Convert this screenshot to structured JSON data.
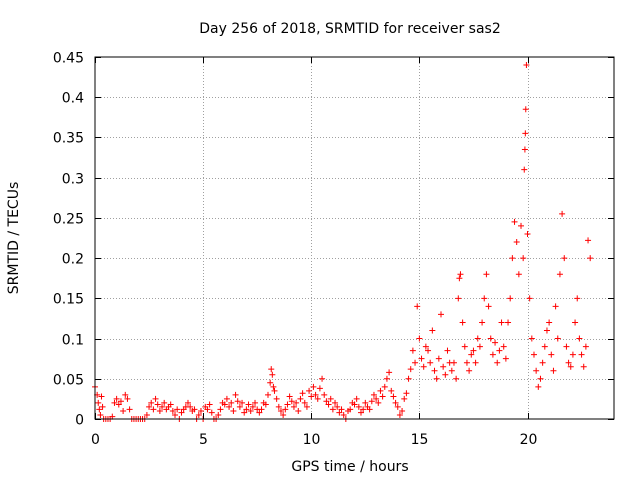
{
  "chart_data": {
    "type": "scatter",
    "title": "Day 256 of 2018, SRMTID for receiver sas2",
    "xlabel": "GPS time / hours",
    "ylabel": "SRMTID / TECUs",
    "xlim": [
      0,
      24
    ],
    "ylim": [
      0,
      0.45
    ],
    "x_ticks": [
      0,
      5,
      10,
      15,
      20
    ],
    "y_ticks": [
      0,
      0.05,
      0.1,
      0.15,
      0.2,
      0.25,
      0.3,
      0.35,
      0.4,
      0.45
    ],
    "x_tick_labels": [
      "0",
      "5",
      "10",
      "15",
      "20"
    ],
    "y_tick_labels": [
      "0",
      "0.05",
      "0.1",
      "0.15",
      "0.2",
      "0.25",
      "0.3",
      "0.35",
      "0.4",
      "0.45"
    ],
    "grid": true,
    "marker": "+",
    "color": "#ff0000",
    "series": [
      {
        "name": "SRMTID",
        "points": [
          [
            0.0,
            0.04
          ],
          [
            0.1,
            0.03
          ],
          [
            0.15,
            0.02
          ],
          [
            0.2,
            0.012
          ],
          [
            0.25,
            0.005
          ],
          [
            0.3,
            0.028
          ],
          [
            0.35,
            0.015
          ],
          [
            0.4,
            0.0
          ],
          [
            0.5,
            0.0
          ],
          [
            0.6,
            0.0
          ],
          [
            0.7,
            0.0
          ],
          [
            0.8,
            0.003
          ],
          [
            0.9,
            0.02
          ],
          [
            1.0,
            0.025
          ],
          [
            1.1,
            0.018
          ],
          [
            1.2,
            0.022
          ],
          [
            1.3,
            0.01
          ],
          [
            1.4,
            0.03
          ],
          [
            1.5,
            0.025
          ],
          [
            1.6,
            0.012
          ],
          [
            1.7,
            0.0
          ],
          [
            1.8,
            0.0
          ],
          [
            1.9,
            0.0
          ],
          [
            2.0,
            0.0
          ],
          [
            2.1,
            0.0
          ],
          [
            2.2,
            0.0
          ],
          [
            2.3,
            0.0
          ],
          [
            2.4,
            0.005
          ],
          [
            2.5,
            0.015
          ],
          [
            2.6,
            0.02
          ],
          [
            2.7,
            0.012
          ],
          [
            2.8,
            0.025
          ],
          [
            2.9,
            0.018
          ],
          [
            3.0,
            0.01
          ],
          [
            3.1,
            0.015
          ],
          [
            3.2,
            0.02
          ],
          [
            3.3,
            0.012
          ],
          [
            3.4,
            0.015
          ],
          [
            3.5,
            0.018
          ],
          [
            3.6,
            0.01
          ],
          [
            3.7,
            0.005
          ],
          [
            3.8,
            0.012
          ],
          [
            3.9,
            0.0
          ],
          [
            4.0,
            0.008
          ],
          [
            4.1,
            0.012
          ],
          [
            4.2,
            0.015
          ],
          [
            4.3,
            0.02
          ],
          [
            4.4,
            0.015
          ],
          [
            4.5,
            0.01
          ],
          [
            4.6,
            0.012
          ],
          [
            4.7,
            0.0
          ],
          [
            4.8,
            0.005
          ],
          [
            4.9,
            0.01
          ],
          [
            5.0,
            0.0
          ],
          [
            5.1,
            0.015
          ],
          [
            5.2,
            0.012
          ],
          [
            5.3,
            0.018
          ],
          [
            5.4,
            0.008
          ],
          [
            5.5,
            0.0
          ],
          [
            5.6,
            0.0
          ],
          [
            5.7,
            0.005
          ],
          [
            5.8,
            0.012
          ],
          [
            5.9,
            0.02
          ],
          [
            6.0,
            0.018
          ],
          [
            6.1,
            0.025
          ],
          [
            6.2,
            0.015
          ],
          [
            6.3,
            0.02
          ],
          [
            6.4,
            0.01
          ],
          [
            6.5,
            0.03
          ],
          [
            6.6,
            0.022
          ],
          [
            6.7,
            0.015
          ],
          [
            6.8,
            0.02
          ],
          [
            6.9,
            0.008
          ],
          [
            7.0,
            0.012
          ],
          [
            7.1,
            0.018
          ],
          [
            7.2,
            0.01
          ],
          [
            7.3,
            0.015
          ],
          [
            7.4,
            0.02
          ],
          [
            7.5,
            0.012
          ],
          [
            7.6,
            0.008
          ],
          [
            7.7,
            0.012
          ],
          [
            7.8,
            0.02
          ],
          [
            7.9,
            0.018
          ],
          [
            8.0,
            0.03
          ],
          [
            8.1,
            0.045
          ],
          [
            8.15,
            0.062
          ],
          [
            8.2,
            0.055
          ],
          [
            8.25,
            0.04
          ],
          [
            8.3,
            0.035
          ],
          [
            8.4,
            0.025
          ],
          [
            8.5,
            0.015
          ],
          [
            8.6,
            0.01
          ],
          [
            8.7,
            0.005
          ],
          [
            8.8,
            0.012
          ],
          [
            8.9,
            0.018
          ],
          [
            9.0,
            0.028
          ],
          [
            9.1,
            0.022
          ],
          [
            9.2,
            0.015
          ],
          [
            9.3,
            0.02
          ],
          [
            9.4,
            0.01
          ],
          [
            9.5,
            0.025
          ],
          [
            9.6,
            0.032
          ],
          [
            9.7,
            0.02
          ],
          [
            9.8,
            0.015
          ],
          [
            9.9,
            0.035
          ],
          [
            10.0,
            0.028
          ],
          [
            10.1,
            0.04
          ],
          [
            10.2,
            0.03
          ],
          [
            10.3,
            0.025
          ],
          [
            10.4,
            0.038
          ],
          [
            10.5,
            0.05
          ],
          [
            10.6,
            0.03
          ],
          [
            10.7,
            0.022
          ],
          [
            10.8,
            0.018
          ],
          [
            10.9,
            0.025
          ],
          [
            11.0,
            0.012
          ],
          [
            11.1,
            0.02
          ],
          [
            11.2,
            0.015
          ],
          [
            11.3,
            0.008
          ],
          [
            11.4,
            0.012
          ],
          [
            11.5,
            0.005
          ],
          [
            11.6,
            0.0
          ],
          [
            11.7,
            0.01
          ],
          [
            11.8,
            0.012
          ],
          [
            11.9,
            0.02
          ],
          [
            12.0,
            0.018
          ],
          [
            12.1,
            0.025
          ],
          [
            12.2,
            0.015
          ],
          [
            12.3,
            0.008
          ],
          [
            12.4,
            0.012
          ],
          [
            12.5,
            0.02
          ],
          [
            12.6,
            0.015
          ],
          [
            12.7,
            0.012
          ],
          [
            12.8,
            0.022
          ],
          [
            12.9,
            0.03
          ],
          [
            13.0,
            0.025
          ],
          [
            13.1,
            0.02
          ],
          [
            13.2,
            0.035
          ],
          [
            13.3,
            0.028
          ],
          [
            13.4,
            0.04
          ],
          [
            13.5,
            0.05
          ],
          [
            13.6,
            0.058
          ],
          [
            13.7,
            0.035
          ],
          [
            13.8,
            0.028
          ],
          [
            13.9,
            0.02
          ],
          [
            14.0,
            0.015
          ],
          [
            14.1,
            0.005
          ],
          [
            14.2,
            0.01
          ],
          [
            14.3,
            0.025
          ],
          [
            14.4,
            0.032
          ],
          [
            14.5,
            0.05
          ],
          [
            14.6,
            0.062
          ],
          [
            14.7,
            0.085
          ],
          [
            14.8,
            0.07
          ],
          [
            14.9,
            0.14
          ],
          [
            15.0,
            0.1
          ],
          [
            15.1,
            0.075
          ],
          [
            15.2,
            0.065
          ],
          [
            15.3,
            0.09
          ],
          [
            15.4,
            0.085
          ],
          [
            15.5,
            0.07
          ],
          [
            15.6,
            0.11
          ],
          [
            15.7,
            0.06
          ],
          [
            15.8,
            0.05
          ],
          [
            15.9,
            0.075
          ],
          [
            16.0,
            0.13
          ],
          [
            16.1,
            0.065
          ],
          [
            16.2,
            0.055
          ],
          [
            16.3,
            0.085
          ],
          [
            16.4,
            0.07
          ],
          [
            16.5,
            0.06
          ],
          [
            16.6,
            0.07
          ],
          [
            16.7,
            0.05
          ],
          [
            16.8,
            0.15
          ],
          [
            16.85,
            0.175
          ],
          [
            16.9,
            0.18
          ],
          [
            17.0,
            0.12
          ],
          [
            17.1,
            0.09
          ],
          [
            17.2,
            0.07
          ],
          [
            17.3,
            0.06
          ],
          [
            17.4,
            0.08
          ],
          [
            17.5,
            0.085
          ],
          [
            17.6,
            0.07
          ],
          [
            17.7,
            0.1
          ],
          [
            17.8,
            0.09
          ],
          [
            17.9,
            0.12
          ],
          [
            18.0,
            0.15
          ],
          [
            18.1,
            0.18
          ],
          [
            18.2,
            0.14
          ],
          [
            18.3,
            0.1
          ],
          [
            18.4,
            0.08
          ],
          [
            18.5,
            0.095
          ],
          [
            18.6,
            0.07
          ],
          [
            18.7,
            0.085
          ],
          [
            18.8,
            0.12
          ],
          [
            18.9,
            0.09
          ],
          [
            19.0,
            0.075
          ],
          [
            19.1,
            0.12
          ],
          [
            19.2,
            0.15
          ],
          [
            19.3,
            0.2
          ],
          [
            19.4,
            0.245
          ],
          [
            19.5,
            0.22
          ],
          [
            19.6,
            0.18
          ],
          [
            19.7,
            0.24
          ],
          [
            19.8,
            0.2
          ],
          [
            19.85,
            0.31
          ],
          [
            19.88,
            0.335
          ],
          [
            19.9,
            0.355
          ],
          [
            19.92,
            0.385
          ],
          [
            19.95,
            0.44
          ],
          [
            20.0,
            0.23
          ],
          [
            20.1,
            0.15
          ],
          [
            20.2,
            0.1
          ],
          [
            20.3,
            0.08
          ],
          [
            20.4,
            0.06
          ],
          [
            20.5,
            0.04
          ],
          [
            20.6,
            0.05
          ],
          [
            20.7,
            0.07
          ],
          [
            20.8,
            0.09
          ],
          [
            20.9,
            0.11
          ],
          [
            21.0,
            0.12
          ],
          [
            21.1,
            0.08
          ],
          [
            21.2,
            0.06
          ],
          [
            21.3,
            0.14
          ],
          [
            21.4,
            0.1
          ],
          [
            21.5,
            0.18
          ],
          [
            21.6,
            0.255
          ],
          [
            21.7,
            0.2
          ],
          [
            21.8,
            0.09
          ],
          [
            21.9,
            0.07
          ],
          [
            22.0,
            0.065
          ],
          [
            22.1,
            0.08
          ],
          [
            22.2,
            0.12
          ],
          [
            22.3,
            0.15
          ],
          [
            22.4,
            0.1
          ],
          [
            22.5,
            0.08
          ],
          [
            22.6,
            0.065
          ],
          [
            22.7,
            0.09
          ],
          [
            22.8,
            0.222
          ],
          [
            22.9,
            0.2
          ]
        ]
      }
    ]
  }
}
